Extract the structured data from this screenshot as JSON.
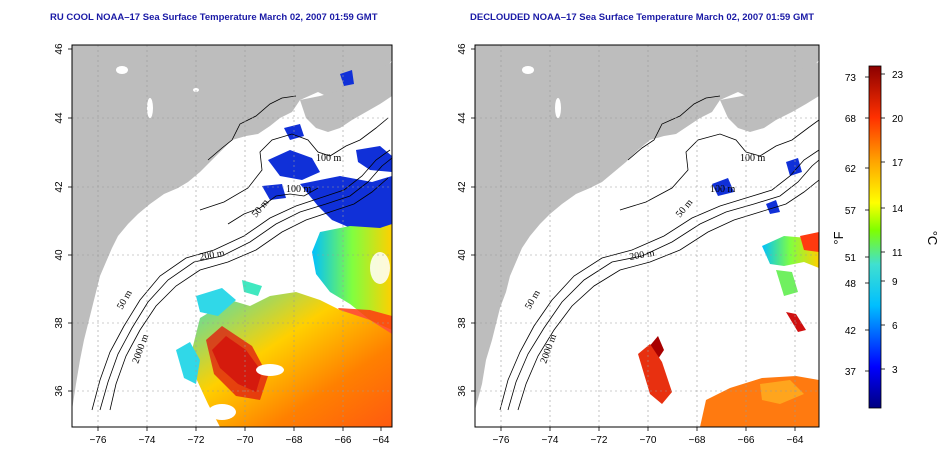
{
  "panels": [
    {
      "title": "RU COOL NOAA–17 Sea Surface Temperature March 02, 2007 01:59 GMT",
      "contour_labels": [
        "100 m",
        "100 m",
        "50 m",
        "200 m",
        "50 m",
        "2000 m"
      ]
    },
    {
      "title": "DECLOUDED NOAA–17 Sea Surface Temperature March 02, 2007 01:59 GMT",
      "contour_labels": [
        "100 m",
        "100 m",
        "50 m",
        "200 m",
        "50 m",
        "2000 m"
      ]
    }
  ],
  "axes": {
    "lon_ticks": [
      "−76",
      "−74",
      "−72",
      "−70",
      "−68",
      "−66",
      "−64"
    ],
    "lat_ticks": [
      "36",
      "38",
      "40",
      "42",
      "44",
      "46"
    ]
  },
  "colorbar": {
    "fahrenheit_ticks": [
      "37",
      "42",
      "48",
      "51",
      "57",
      "62",
      "68",
      "73"
    ],
    "celsius_ticks": [
      "3",
      "6",
      "9",
      "11",
      "14",
      "17",
      "20",
      "23"
    ],
    "unit_f": "°F",
    "unit_c": "°C"
  },
  "colors": {
    "land": "#bdbdbd",
    "water_blank": "#ffffff",
    "title": "#1a1aa6",
    "cold": "#0022cc",
    "warm": "#e8401a"
  }
}
